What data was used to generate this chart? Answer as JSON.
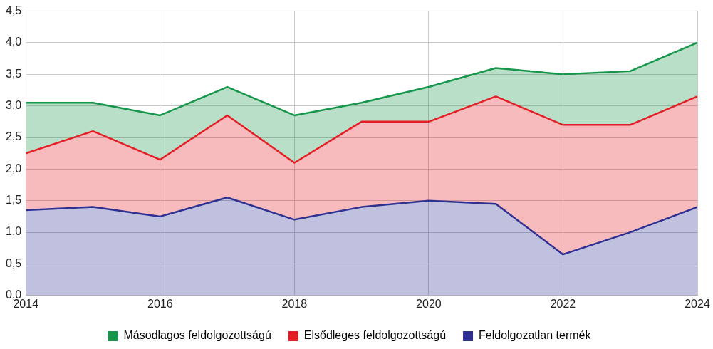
{
  "chart_data": {
    "type": "area",
    "stacked": true,
    "x": [
      2014,
      2015,
      2016,
      2017,
      2018,
      2019,
      2020,
      2021,
      2022,
      2023,
      2024
    ],
    "series": [
      {
        "name": "Feldolgozatlan termék",
        "color": "#2e3192",
        "values": [
          1.35,
          1.4,
          1.25,
          1.55,
          1.2,
          1.4,
          1.5,
          1.45,
          0.65,
          1.0,
          1.4
        ]
      },
      {
        "name": "Elsődleges feldolgozottságú",
        "color": "#e31e24",
        "values": [
          0.9,
          1.2,
          0.9,
          1.3,
          0.9,
          1.35,
          1.25,
          1.7,
          2.05,
          1.7,
          1.75
        ]
      },
      {
        "name": "Másodlagos feldolgozottságú",
        "color": "#16964a",
        "values": [
          0.8,
          0.45,
          0.7,
          0.45,
          0.75,
          0.3,
          0.55,
          0.45,
          0.8,
          0.85,
          0.85
        ]
      }
    ],
    "xlim": [
      2014,
      2024
    ],
    "xticks": [
      2014,
      2016,
      2018,
      2020,
      2022,
      2024
    ],
    "ylim": [
      0,
      4.5
    ],
    "yticks": [
      {
        "value": 0,
        "label": "0,0"
      },
      {
        "value": 0.5,
        "label": "0,5"
      },
      {
        "value": 1,
        "label": "1,0"
      },
      {
        "value": 1.5,
        "label": "1,5"
      },
      {
        "value": 2,
        "label": "2,0"
      },
      {
        "value": 2.5,
        "label": "2,5"
      },
      {
        "value": 3,
        "label": "3,0"
      },
      {
        "value": 3.5,
        "label": "3,5"
      },
      {
        "value": 4,
        "label": "4,0"
      },
      {
        "value": 4.5,
        "label": "4,5"
      }
    ],
    "grid": true,
    "legend": "bottom",
    "marker": "none",
    "line_style": "solid"
  }
}
